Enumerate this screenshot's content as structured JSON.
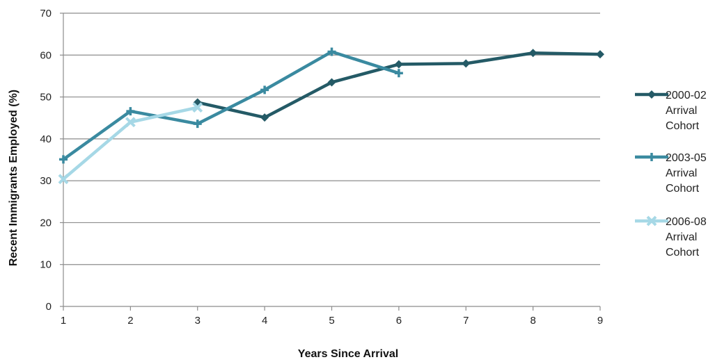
{
  "chart_data": {
    "type": "line",
    "xlabel": "Years Since Arrival",
    "ylabel": "Recent Immigrants Employed (%)",
    "x": [
      1,
      2,
      3,
      4,
      5,
      6,
      7,
      8,
      9
    ],
    "xlim": [
      1,
      9
    ],
    "ylim": [
      0,
      70
    ],
    "yticks": [
      0,
      10,
      20,
      30,
      40,
      50,
      60,
      70
    ],
    "grid": true,
    "legend_position": "right",
    "series": [
      {
        "name_lines": [
          "2000-02",
          "Arrival",
          "Cohort"
        ],
        "color": "#245a66",
        "marker": "diamond",
        "points": [
          [
            3,
            48.7
          ],
          [
            4,
            45.1
          ],
          [
            5,
            53.5
          ],
          [
            6,
            57.8
          ],
          [
            7,
            58.0
          ],
          [
            8,
            60.5
          ],
          [
            9,
            60.2
          ]
        ]
      },
      {
        "name_lines": [
          "2003-05",
          "Arrival",
          "Cohort"
        ],
        "color": "#3a8aa0",
        "marker": "plus",
        "points": [
          [
            1,
            35.1
          ],
          [
            2,
            46.6
          ],
          [
            3,
            43.6
          ],
          [
            4,
            51.7
          ],
          [
            5,
            60.8
          ],
          [
            6,
            55.7
          ]
        ]
      },
      {
        "name_lines": [
          "2006-08",
          "Arrival",
          "Cohort"
        ],
        "color": "#a6d8e6",
        "marker": "x",
        "points": [
          [
            1,
            30.4
          ],
          [
            2,
            44.0
          ],
          [
            3,
            47.5
          ]
        ]
      }
    ]
  }
}
